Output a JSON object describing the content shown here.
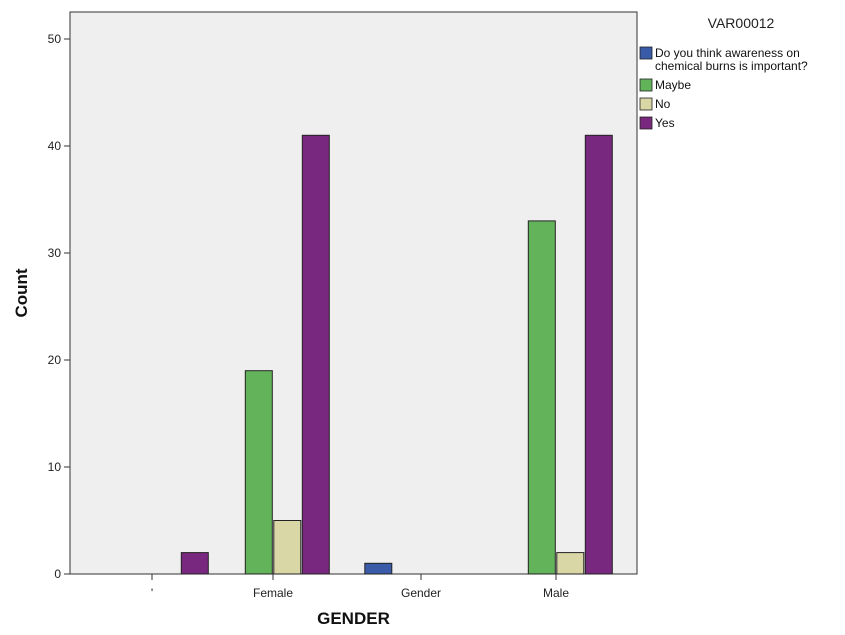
{
  "chart_data": {
    "type": "bar",
    "xlabel": "GENDER",
    "ylabel": "Count",
    "ylim": [
      0,
      50
    ],
    "yticks": [
      0,
      10,
      20,
      30,
      40,
      50
    ],
    "categories": [
      "",
      "Female",
      "Gender",
      "Male"
    ],
    "category_tick_labels": [
      "'",
      "Female",
      "Gender",
      "Male"
    ],
    "legend_title": "VAR00012",
    "legend_position": "right",
    "grid": false,
    "series": [
      {
        "name": "Do you think awareness on chemical burns is important?",
        "legend_lines": [
          "Do you think awareness on",
          "chemical burns is important?"
        ],
        "color": "#3a5ba8",
        "values": [
          null,
          null,
          1,
          null
        ]
      },
      {
        "name": "Maybe",
        "legend_lines": [
          "Maybe"
        ],
        "color": "#63b35a",
        "values": [
          null,
          19,
          null,
          33
        ]
      },
      {
        "name": "No",
        "legend_lines": [
          "No"
        ],
        "color": "#d9d7a5",
        "values": [
          null,
          5,
          null,
          2
        ]
      },
      {
        "name": "Yes",
        "legend_lines": [
          "Yes"
        ],
        "color": "#78287e",
        "values": [
          2,
          41,
          null,
          41
        ]
      }
    ]
  },
  "colors": {
    "plot_background": "#efefef",
    "axis": "#333333",
    "bar_stroke": "#222222"
  }
}
